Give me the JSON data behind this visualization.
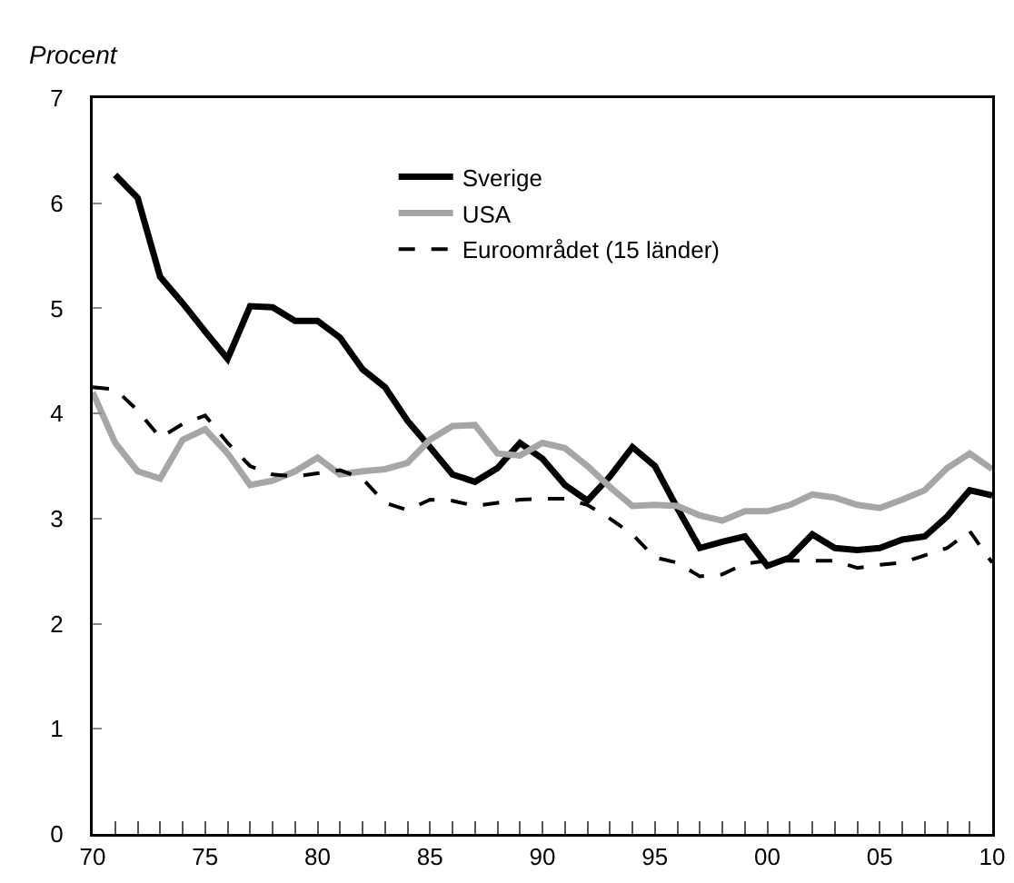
{
  "chart_data": {
    "type": "line",
    "ylabel": "Procent",
    "x": [
      1970,
      1971,
      1972,
      1973,
      1974,
      1975,
      1976,
      1977,
      1978,
      1979,
      1980,
      1981,
      1982,
      1983,
      1984,
      1985,
      1986,
      1987,
      1988,
      1989,
      1990,
      1991,
      1992,
      1993,
      1994,
      1995,
      1996,
      1997,
      1998,
      1999,
      2000,
      2001,
      2002,
      2003,
      2004,
      2005,
      2006,
      2007,
      2008,
      2009,
      2010
    ],
    "series": [
      {
        "name": "Sverige",
        "color": "#000000",
        "line_style": "solid",
        "values": [
          null,
          6.27,
          6.05,
          5.3,
          5.05,
          4.78,
          4.52,
          5.02,
          5.01,
          4.88,
          4.88,
          4.72,
          4.42,
          4.25,
          3.93,
          3.68,
          3.42,
          3.35,
          3.48,
          3.72,
          3.57,
          3.32,
          3.17,
          3.4,
          3.68,
          3.5,
          3.1,
          2.72,
          2.78,
          2.83,
          2.55,
          2.63,
          2.85,
          2.72,
          2.7,
          2.72,
          2.8,
          2.83,
          3.02,
          3.27,
          3.22
        ]
      },
      {
        "name": "USA",
        "color": "#a6a6a6",
        "line_style": "solid",
        "values": [
          4.2,
          3.72,
          3.45,
          3.38,
          3.75,
          3.85,
          3.62,
          3.32,
          3.36,
          3.45,
          3.58,
          3.42,
          3.45,
          3.47,
          3.53,
          3.75,
          3.88,
          3.89,
          3.62,
          3.6,
          3.72,
          3.67,
          3.5,
          3.3,
          3.12,
          3.13,
          3.12,
          3.03,
          2.98,
          3.07,
          3.07,
          3.13,
          3.23,
          3.2,
          3.13,
          3.1,
          3.18,
          3.27,
          3.48,
          3.62,
          3.47
        ]
      },
      {
        "name": "Euroområdet (15 länder)",
        "color": "#000000",
        "line_style": "dashed",
        "values": [
          4.25,
          4.23,
          4.03,
          3.77,
          3.9,
          3.98,
          3.72,
          3.5,
          3.42,
          3.4,
          3.43,
          3.46,
          3.38,
          3.15,
          3.08,
          3.18,
          3.17,
          3.12,
          3.15,
          3.18,
          3.19,
          3.19,
          3.13,
          3.0,
          2.85,
          2.63,
          2.58,
          2.45,
          2.47,
          2.57,
          2.6,
          2.6,
          2.6,
          2.6,
          2.53,
          2.56,
          2.58,
          2.65,
          2.72,
          2.88,
          2.58
        ]
      }
    ],
    "xlim": [
      1970,
      2010
    ],
    "xticks": [
      {
        "value": 1970,
        "label": "70"
      },
      {
        "value": 1971,
        "label": null
      },
      {
        "value": 1972,
        "label": null
      },
      {
        "value": 1973,
        "label": null
      },
      {
        "value": 1974,
        "label": null
      },
      {
        "value": 1975,
        "label": "75"
      },
      {
        "value": 1976,
        "label": null
      },
      {
        "value": 1977,
        "label": null
      },
      {
        "value": 1978,
        "label": null
      },
      {
        "value": 1979,
        "label": null
      },
      {
        "value": 1980,
        "label": "80"
      },
      {
        "value": 1981,
        "label": null
      },
      {
        "value": 1982,
        "label": null
      },
      {
        "value": 1983,
        "label": null
      },
      {
        "value": 1984,
        "label": null
      },
      {
        "value": 1985,
        "label": "85"
      },
      {
        "value": 1986,
        "label": null
      },
      {
        "value": 1987,
        "label": null
      },
      {
        "value": 1988,
        "label": null
      },
      {
        "value": 1989,
        "label": null
      },
      {
        "value": 1990,
        "label": "90"
      },
      {
        "value": 1991,
        "label": null
      },
      {
        "value": 1992,
        "label": null
      },
      {
        "value": 1993,
        "label": null
      },
      {
        "value": 1994,
        "label": null
      },
      {
        "value": 1995,
        "label": "95"
      },
      {
        "value": 1996,
        "label": null
      },
      {
        "value": 1997,
        "label": null
      },
      {
        "value": 1998,
        "label": null
      },
      {
        "value": 1999,
        "label": null
      },
      {
        "value": 2000,
        "label": "00"
      },
      {
        "value": 2001,
        "label": null
      },
      {
        "value": 2002,
        "label": null
      },
      {
        "value": 2003,
        "label": null
      },
      {
        "value": 2004,
        "label": null
      },
      {
        "value": 2005,
        "label": "05"
      },
      {
        "value": 2006,
        "label": null
      },
      {
        "value": 2007,
        "label": null
      },
      {
        "value": 2008,
        "label": null
      },
      {
        "value": 2009,
        "label": null
      },
      {
        "value": 2010,
        "label": "10"
      }
    ],
    "ylim": [
      0,
      7
    ],
    "yticks": [
      0,
      1,
      2,
      3,
      4,
      5,
      6,
      7
    ],
    "grid": false,
    "legend": "top",
    "marker": "none"
  }
}
